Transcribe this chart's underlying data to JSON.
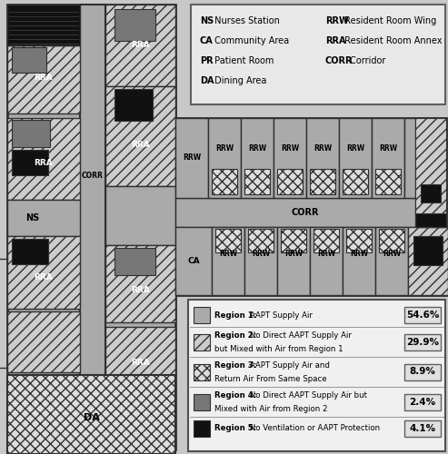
{
  "legend_items": [
    {
      "label1": "Region 1:",
      "label2": " AAPT Supply Air",
      "pct": "54.6%",
      "color": "#aaaaaa",
      "hatch": null
    },
    {
      "label1": "Region 2:",
      "label2": " No Direct AAPT Supply Air",
      "label3": "but Mixed with Air from Region 1",
      "pct": "29.9%",
      "color": "#cccccc",
      "hatch": "///"
    },
    {
      "label1": "Region 3:",
      "label2": " AAPT Supply Air and",
      "label3": "Return Air From Same Space",
      "pct": "8.9%",
      "color": "#dddddd",
      "hatch": "xxx"
    },
    {
      "label1": "Region 4:",
      "label2": " No Direct AAPT Supply Air but",
      "label3": "Mixed with Air from Region 2",
      "pct": "2.4%",
      "color": "#777777",
      "hatch": null
    },
    {
      "label1": "Region 5:",
      "label2": " No Ventilation or AAPT Protection",
      "label3": null,
      "pct": "4.1%",
      "color": "#111111",
      "hatch": null
    }
  ],
  "abbreviations_col1": [
    [
      "NS",
      " Nurses Station"
    ],
    [
      "CA",
      " Community Area"
    ],
    [
      "PR",
      " Patient Room"
    ],
    [
      "DA",
      " Dining Area"
    ]
  ],
  "abbreviations_col2": [
    [
      "RRW",
      " Resident Room Wing"
    ],
    [
      "RRA",
      " Resident Room Annex"
    ],
    [
      "CORR",
      " Corridor"
    ],
    [
      "",
      ""
    ]
  ],
  "c1": "#aaaaaa",
  "c2": "#cccccc",
  "c3": "#dddddd",
  "c4": "#777777",
  "c5": "#111111",
  "bg": "#c8c8c8",
  "white": "#ffffff",
  "outer_border": "#303030"
}
